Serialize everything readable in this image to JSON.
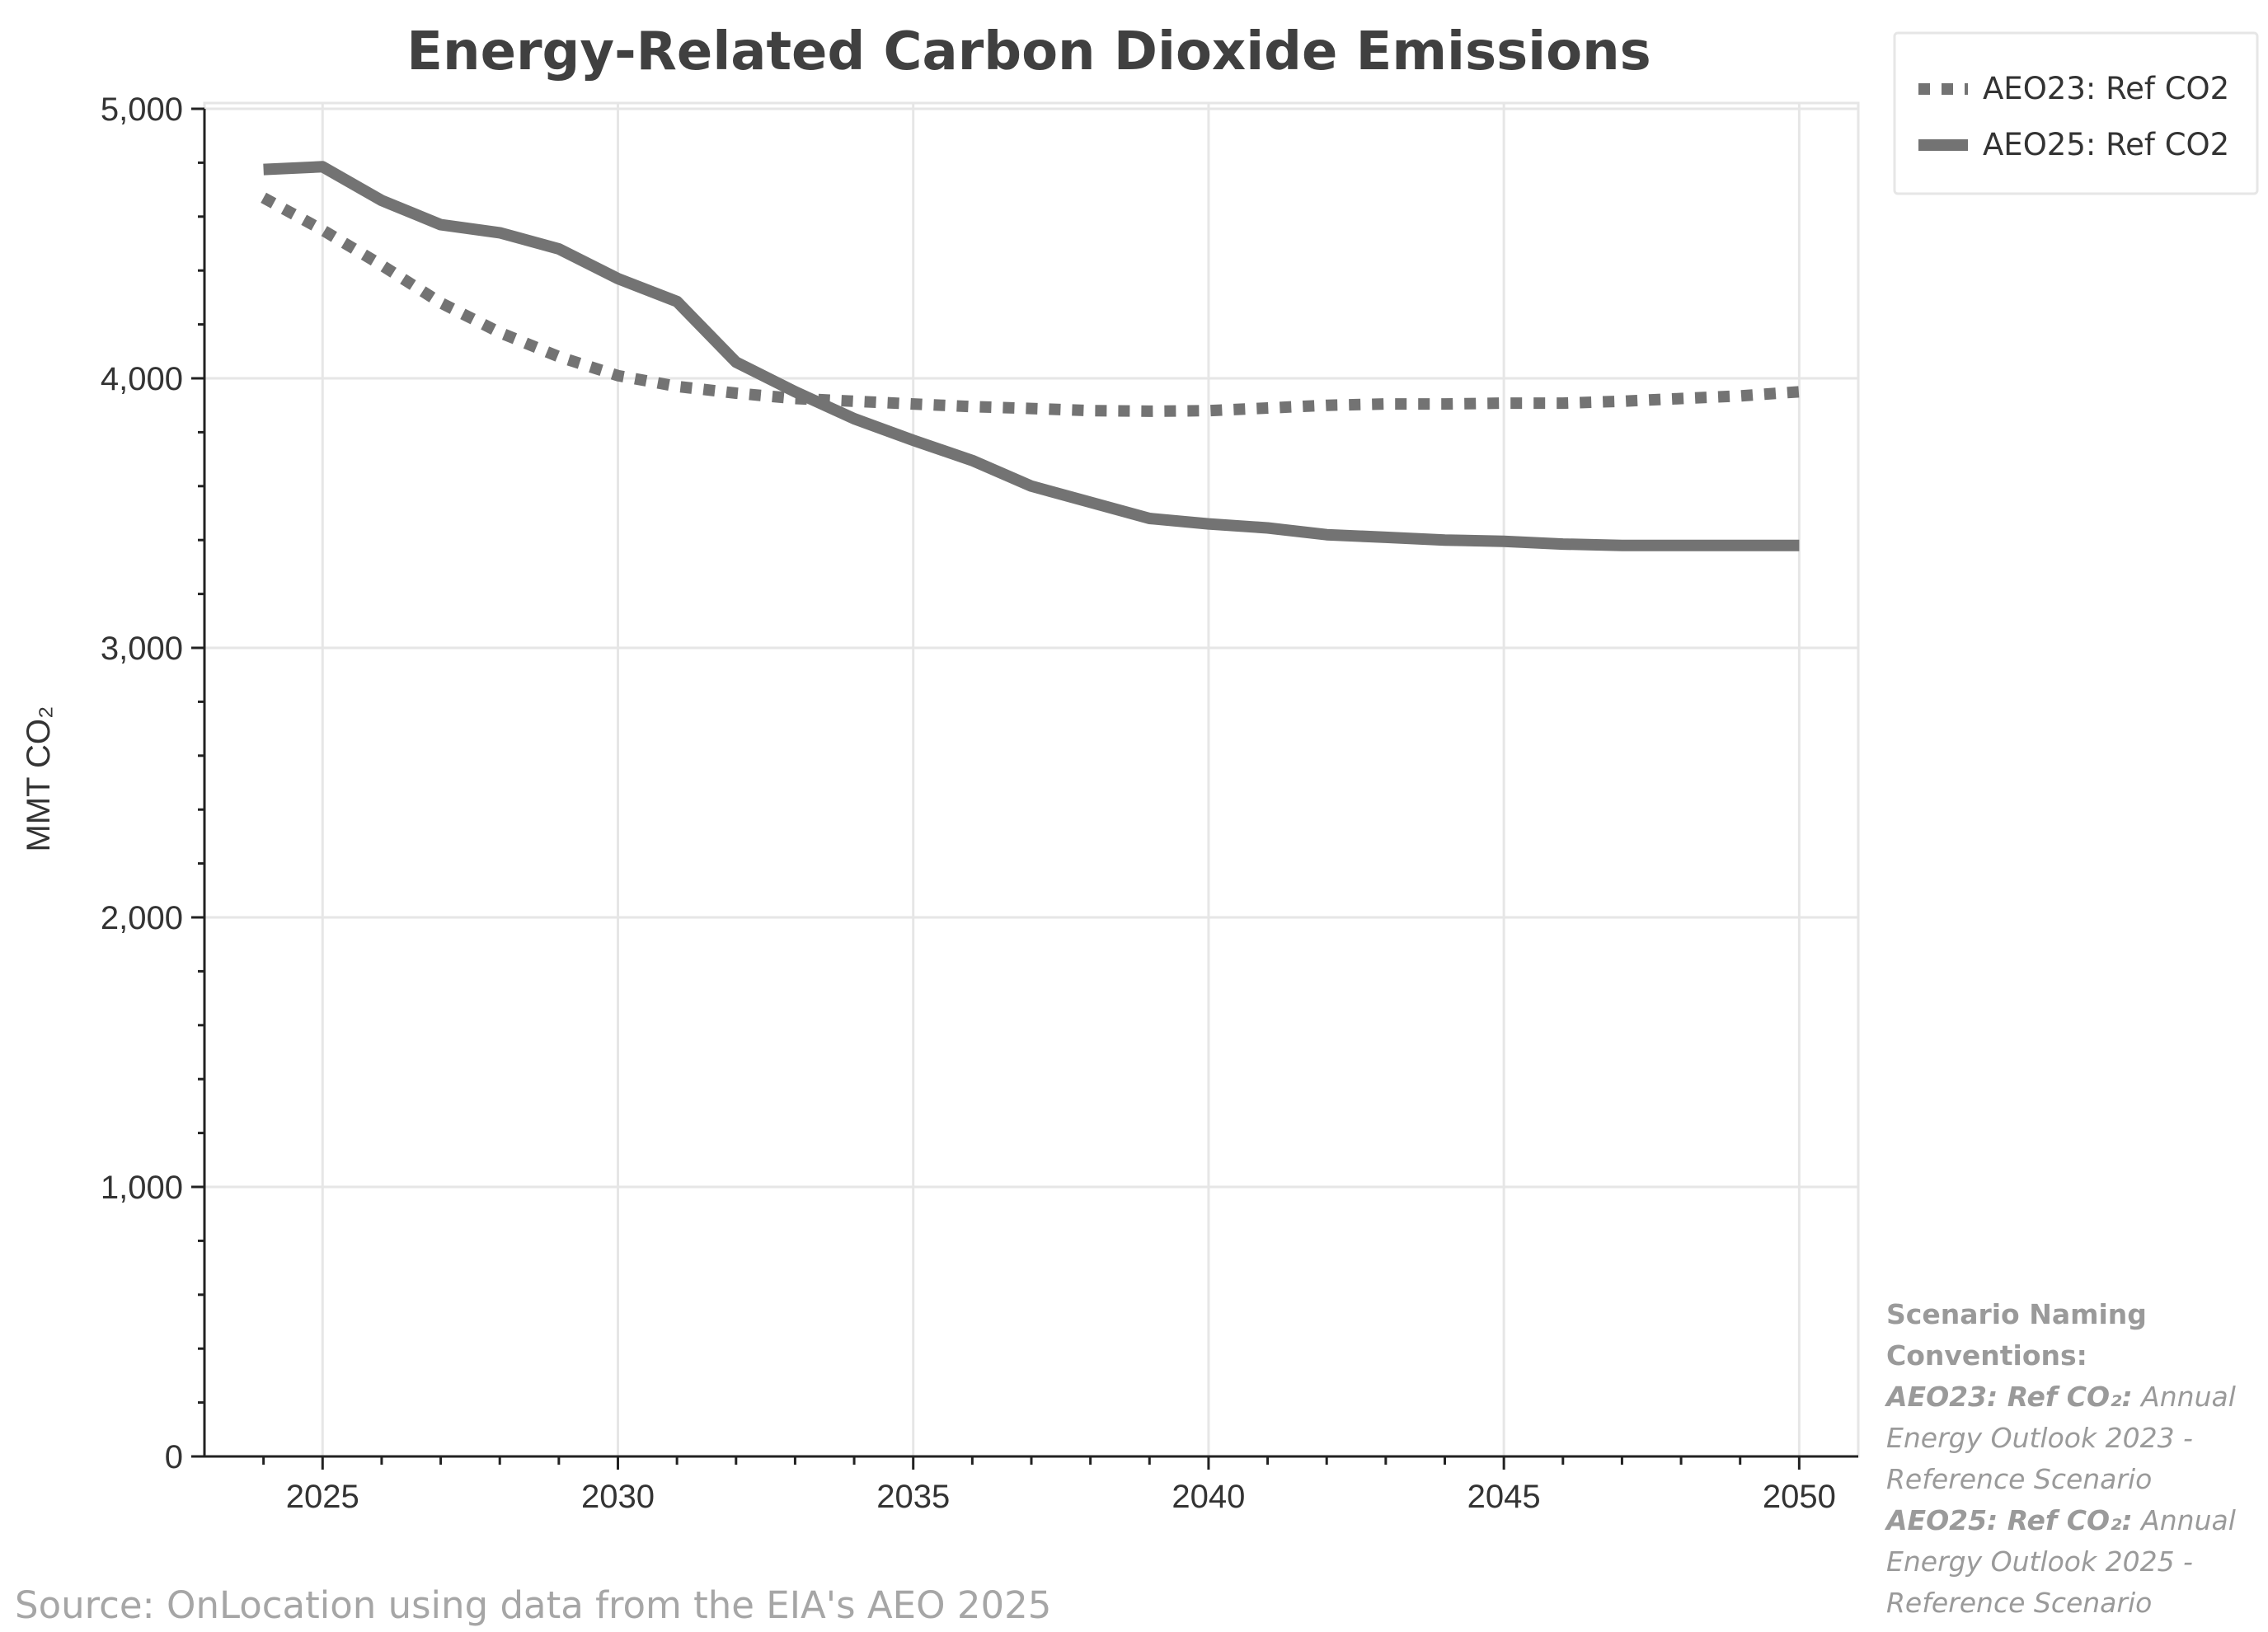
{
  "chart_data": {
    "type": "line",
    "title": "Energy-Related Carbon Dioxide Emissions",
    "ylabel": "MMT CO₂",
    "xlabel": "",
    "xlim": [
      2023,
      2051
    ],
    "ylim": [
      0,
      5000
    ],
    "x_ticks": [
      2025,
      2030,
      2035,
      2040,
      2045,
      2050
    ],
    "y_ticks": [
      0,
      1000,
      2000,
      3000,
      4000,
      5000
    ],
    "y_tick_labels": [
      "0",
      "1,000",
      "2,000",
      "3,000",
      "4,000",
      "5,000"
    ],
    "grid": true,
    "legend_position": "top-right",
    "series": [
      {
        "name": "AEO23: Ref CO2",
        "line_style": "dotted",
        "color": "#737373",
        "x": [
          2024,
          2025,
          2026,
          2027,
          2028,
          2029,
          2030,
          2031,
          2032,
          2033,
          2034,
          2035,
          2036,
          2037,
          2038,
          2039,
          2040,
          2041,
          2042,
          2043,
          2044,
          2045,
          2046,
          2047,
          2048,
          2049,
          2050
        ],
        "y": [
          4670,
          4550,
          4420,
          4280,
          4170,
          4080,
          4010,
          3970,
          3945,
          3925,
          3915,
          3905,
          3895,
          3888,
          3880,
          3878,
          3880,
          3890,
          3900,
          3905,
          3905,
          3908,
          3908,
          3915,
          3925,
          3935,
          3950
        ]
      },
      {
        "name": "AEO25: Ref CO2",
        "line_style": "solid",
        "color": "#737373",
        "x": [
          2024,
          2025,
          2026,
          2027,
          2028,
          2029,
          2030,
          2031,
          2032,
          2033,
          2034,
          2035,
          2036,
          2037,
          2038,
          2039,
          2040,
          2041,
          2042,
          2043,
          2044,
          2045,
          2046,
          2047,
          2048,
          2049,
          2050
        ],
        "y": [
          4775,
          4785,
          4660,
          4570,
          4540,
          4480,
          4370,
          4285,
          4060,
          3950,
          3850,
          3770,
          3695,
          3600,
          3540,
          3480,
          3460,
          3445,
          3420,
          3410,
          3400,
          3395,
          3385,
          3380,
          3380,
          3380,
          3380
        ]
      }
    ],
    "source": "Source: OnLocation using data from the EIA's AEO 2025",
    "notes": {
      "heading": "Scenario Naming Conventions:",
      "entries": [
        {
          "label": "AEO23: Ref CO₂:",
          "text": "Annual Energy Outlook 2023 - Reference Scenario"
        },
        {
          "label": "AEO25: Ref CO₂:",
          "text": "Annual Energy Outlook 2025 - Reference Scenario"
        }
      ]
    }
  }
}
